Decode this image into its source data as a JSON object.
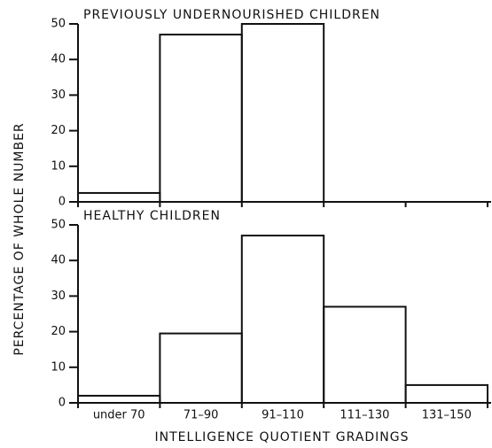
{
  "ylabel": "PERCENTAGE OF WHOLE NUMBER",
  "xlabel": "INTELLIGENCE QUOTIENT GRADINGS",
  "chart_data": [
    {
      "type": "bar",
      "title": "PREVIOUSLY UNDERNOURISHED CHILDREN",
      "values": [
        2.5,
        47,
        50,
        0,
        0
      ],
      "color": "#000000",
      "ylim": [
        0,
        50
      ],
      "yticks": [
        0,
        10,
        20,
        30,
        40,
        50
      ]
    },
    {
      "type": "bar",
      "title": "HEALTHY CHILDREN",
      "categories": [
        "under 70",
        "71–90",
        "91–110",
        "111–130",
        "131–150"
      ],
      "values": [
        2,
        19.5,
        47,
        27,
        5
      ],
      "color": "#000000",
      "ylim": [
        0,
        50
      ],
      "yticks": [
        0,
        10,
        20,
        30,
        40,
        50
      ]
    }
  ]
}
